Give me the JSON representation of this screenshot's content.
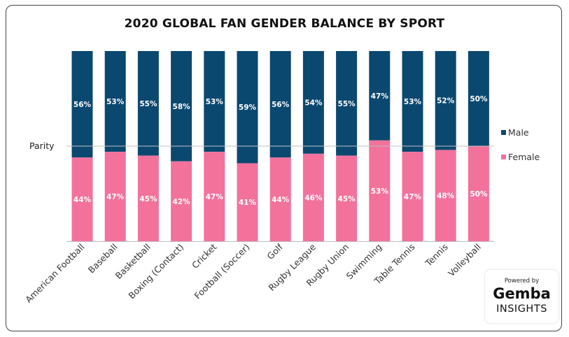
{
  "title": "2020 GLOBAL FAN GENDER BALANCE BY SPORT",
  "reference_line_label": "Parity",
  "brand": {
    "powered_by": "Powered by",
    "name": "Gemba",
    "sub": "INSIGHTS"
  },
  "colors": {
    "male": "#0b4870",
    "female": "#f2729c",
    "grid": "#bfbfbf",
    "text": "#333333"
  },
  "chart_data": {
    "type": "bar",
    "stacked": true,
    "percent": true,
    "title": "2020 GLOBAL FAN GENDER BALANCE BY SPORT",
    "categories": [
      "American Football",
      "Baseball",
      "Basketball",
      "Boxing (Contact)",
      "Cricket",
      "Football (Soccer)",
      "Golf",
      "Rugby League",
      "Rugby Union",
      "Swimming",
      "Table Tennis",
      "Tennis",
      "Volleyball"
    ],
    "series": [
      {
        "name": "Female",
        "values": [
          44,
          47,
          45,
          42,
          47,
          41,
          44,
          46,
          45,
          53,
          47,
          48,
          50
        ]
      },
      {
        "name": "Male",
        "values": [
          56,
          53,
          55,
          58,
          53,
          59,
          56,
          54,
          55,
          47,
          53,
          52,
          50
        ]
      }
    ],
    "ylim": [
      0,
      100
    ],
    "reference_line": {
      "label": "Parity",
      "value": 50
    },
    "legend": [
      "Male",
      "Female"
    ],
    "legend_position": "right",
    "xlabel": "",
    "ylabel": ""
  }
}
